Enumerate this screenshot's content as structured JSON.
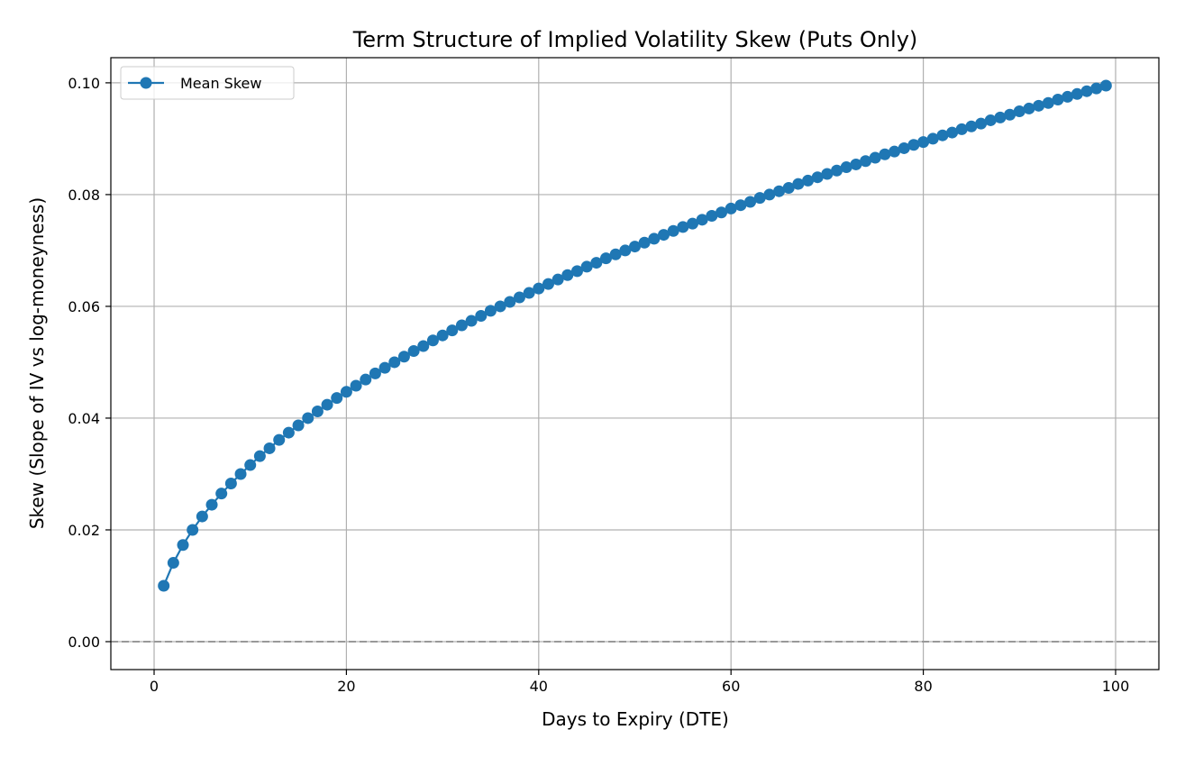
{
  "chart_data": {
    "type": "line",
    "title": "Term Structure of Implied Volatility Skew (Puts Only)",
    "xlabel": "Days to Expiry (DTE)",
    "ylabel": "Skew (Slope of IV vs log-moneyness)",
    "xlim": [
      -4.5,
      104.5
    ],
    "ylim": [
      -0.005,
      0.1045
    ],
    "xticks": [
      0,
      20,
      40,
      60,
      80,
      100
    ],
    "yticks": [
      0.0,
      0.02,
      0.04,
      0.06,
      0.08,
      0.1
    ],
    "xtick_labels": [
      "0",
      "20",
      "40",
      "60",
      "80",
      "100"
    ],
    "ytick_labels": [
      "0.00",
      "0.02",
      "0.04",
      "0.06",
      "0.08",
      "0.10"
    ],
    "grid": true,
    "legend_position": "upper left",
    "reference_line": {
      "y": 0,
      "style": "dashed",
      "color": "#999999"
    },
    "series": [
      {
        "name": "Mean Skew",
        "color": "#1f77b4",
        "marker": "circle",
        "x": [
          1,
          2,
          3,
          4,
          5,
          6,
          7,
          8,
          9,
          10,
          11,
          12,
          13,
          14,
          15,
          16,
          17,
          18,
          19,
          20,
          21,
          22,
          23,
          24,
          25,
          26,
          27,
          28,
          29,
          30,
          31,
          32,
          33,
          34,
          35,
          36,
          37,
          38,
          39,
          40,
          41,
          42,
          43,
          44,
          45,
          46,
          47,
          48,
          49,
          50,
          51,
          52,
          53,
          54,
          55,
          56,
          57,
          58,
          59,
          60,
          61,
          62,
          63,
          64,
          65,
          66,
          67,
          68,
          69,
          70,
          71,
          72,
          73,
          74,
          75,
          76,
          77,
          78,
          79,
          80,
          81,
          82,
          83,
          84,
          85,
          86,
          87,
          88,
          89,
          90,
          91,
          92,
          93,
          94,
          95,
          96,
          97,
          98,
          99
        ],
        "values": [
          0.01,
          0.0141,
          0.0173,
          0.02,
          0.0224,
          0.0245,
          0.0265,
          0.0283,
          0.03,
          0.0316,
          0.0332,
          0.0346,
          0.0361,
          0.0374,
          0.0387,
          0.04,
          0.0412,
          0.0424,
          0.0436,
          0.0447,
          0.0458,
          0.0469,
          0.048,
          0.049,
          0.05,
          0.051,
          0.052,
          0.0529,
          0.0539,
          0.0548,
          0.0557,
          0.0566,
          0.0574,
          0.0583,
          0.0592,
          0.06,
          0.0608,
          0.0616,
          0.0624,
          0.0632,
          0.064,
          0.0648,
          0.0656,
          0.0663,
          0.0671,
          0.0678,
          0.0686,
          0.0693,
          0.07,
          0.0707,
          0.0714,
          0.0721,
          0.0728,
          0.0735,
          0.0742,
          0.0748,
          0.0755,
          0.0762,
          0.0768,
          0.0775,
          0.0781,
          0.0787,
          0.0794,
          0.08,
          0.0806,
          0.0812,
          0.0819,
          0.0825,
          0.0831,
          0.0837,
          0.0843,
          0.0849,
          0.0854,
          0.086,
          0.0866,
          0.0872,
          0.0877,
          0.0883,
          0.0889,
          0.0894,
          0.09,
          0.0906,
          0.0911,
          0.0917,
          0.0922,
          0.0927,
          0.0933,
          0.0938,
          0.0943,
          0.0949,
          0.0954,
          0.0959,
          0.0964,
          0.097,
          0.0975,
          0.098,
          0.0985,
          0.099,
          0.0995
        ]
      }
    ]
  }
}
